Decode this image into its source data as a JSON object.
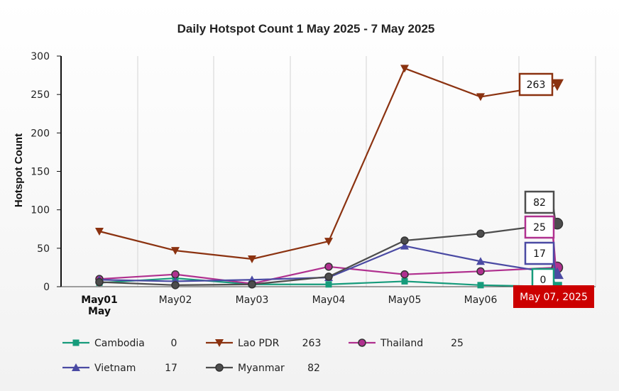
{
  "chart_data": {
    "type": "line",
    "title": "Daily Hotspot Count 1 May 2025 - 7 May 2025",
    "xlabel": "",
    "ylabel": "Hotspot Count",
    "categories": [
      "May01",
      "May02",
      "May03",
      "May04",
      "May05",
      "May06",
      "May07"
    ],
    "first_tick_sublabel": "May",
    "ylim": [
      0,
      300
    ],
    "yticks": [
      0,
      50,
      100,
      150,
      200,
      250,
      300
    ],
    "grid": "vertical",
    "legend_position": "bottom",
    "crosshair_label": "May 07, 2025",
    "series": [
      {
        "name": "Cambodia",
        "color": "#169b7b",
        "marker": "square",
        "values": [
          5,
          11,
          3,
          3,
          7,
          2,
          0
        ]
      },
      {
        "name": "Lao PDR",
        "color": "#8b3210",
        "marker": "triangle-down",
        "values": [
          72,
          47,
          36,
          59,
          284,
          247,
          263
        ]
      },
      {
        "name": "Thailand",
        "color": "#b0308f",
        "marker": "circle",
        "values": [
          10,
          16,
          4,
          26,
          16,
          20,
          25
        ]
      },
      {
        "name": "Vietnam",
        "color": "#4a4aa3",
        "marker": "triangle-up",
        "values": [
          9,
          7,
          9,
          12,
          53,
          33,
          17
        ]
      },
      {
        "name": "Myanmar",
        "color": "#4d4d4d",
        "marker": "circle",
        "values": [
          6,
          2,
          3,
          13,
          60,
          69,
          82
        ]
      }
    ],
    "legend_values": [
      "0",
      "263",
      "25",
      "17",
      "82"
    ],
    "tooltips": [
      "263",
      "82",
      "25",
      "17",
      "0"
    ]
  }
}
